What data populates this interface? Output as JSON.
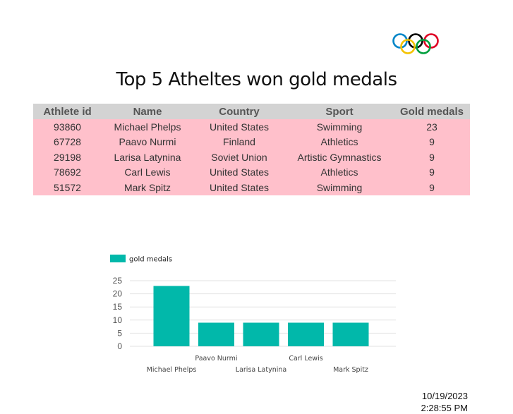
{
  "report": {
    "title": "Top 5 Atheltes won gold medals"
  },
  "table": {
    "headers": [
      "Athlete id",
      "Name",
      "Country",
      "Sport",
      "Gold medals"
    ],
    "rows": [
      [
        "93860",
        "Michael Phelps",
        "United States",
        "Swimming",
        "23"
      ],
      [
        "67728",
        "Paavo Nurmi",
        "Finland",
        "Athletics",
        "9"
      ],
      [
        "29198",
        "Larisa Latynina",
        "Soviet Union",
        "Artistic Gymnastics",
        "9"
      ],
      [
        "78692",
        "Carl Lewis",
        "United States",
        "Athletics",
        "9"
      ],
      [
        "51572",
        "Mark Spitz",
        "United States",
        "Swimming",
        "9"
      ]
    ]
  },
  "chart_data": {
    "type": "bar",
    "categories": [
      "Michael Phelps",
      "Paavo Nurmi",
      "Larisa Latynina",
      "Carl Lewis",
      "Mark Spitz"
    ],
    "series": [
      {
        "name": "gold medals",
        "values": [
          23,
          9,
          9,
          9,
          9
        ],
        "color": "#01b8aa"
      }
    ],
    "title": "",
    "xlabel": "",
    "ylabel": "",
    "ylim": [
      0,
      25
    ],
    "yticks": [
      0,
      5,
      10,
      15,
      20,
      25
    ],
    "grid": true,
    "legend": "top-left"
  },
  "timestamp": {
    "date": "10/19/2023",
    "time": "2:28:55 PM"
  },
  "colors": {
    "rings": [
      "#0085c7",
      "#f4c300",
      "#000000",
      "#009f3d",
      "#df0024"
    ]
  },
  "icons": {
    "logo": "olympic-rings-icon"
  }
}
